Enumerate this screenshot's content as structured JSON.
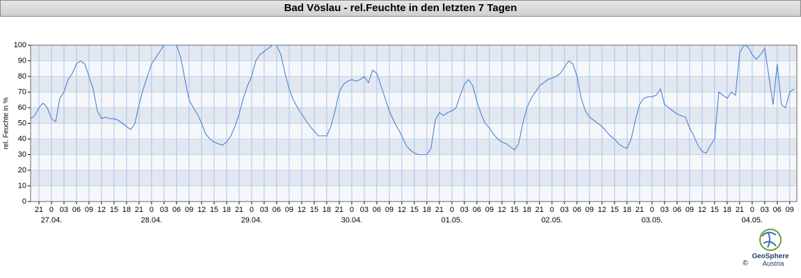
{
  "chart_data": {
    "type": "line",
    "title": "Bad Vöslau - rel.Feuchte in den letzten 7 Tagen",
    "y_label": "rel. Feuchte in %",
    "x": [
      -5,
      -4,
      -3,
      -2,
      -1,
      0,
      1,
      2,
      3,
      4,
      5,
      6,
      7,
      8,
      9,
      10,
      11,
      12,
      13,
      14,
      15,
      16,
      17,
      18,
      19,
      20,
      21,
      22,
      23,
      24,
      25,
      26,
      27,
      28,
      29,
      30,
      31,
      32,
      33,
      34,
      35,
      36,
      37,
      38,
      39,
      40,
      41,
      42,
      43,
      44,
      45,
      46,
      47,
      48,
      49,
      50,
      51,
      52,
      53,
      54,
      55,
      56,
      57,
      58,
      59,
      60,
      61,
      62,
      63,
      64,
      65,
      66,
      67,
      68,
      69,
      70,
      71,
      72,
      73,
      74,
      75,
      76,
      77,
      78,
      79,
      80,
      81,
      82,
      83,
      84,
      85,
      86,
      87,
      88,
      89,
      90,
      91,
      92,
      93,
      94,
      95,
      96,
      97,
      98,
      99,
      100,
      101,
      102,
      103,
      104,
      105,
      106,
      107,
      108,
      109,
      110,
      111,
      112,
      113,
      114,
      115,
      116,
      117,
      118,
      119,
      120,
      121,
      122,
      123,
      124,
      125,
      126,
      127,
      128,
      129,
      130,
      131,
      132,
      133,
      134,
      135,
      136,
      137,
      138,
      139,
      140,
      141,
      142,
      143,
      144,
      145,
      146,
      147,
      148,
      149,
      150,
      151,
      152,
      153,
      154,
      155,
      156,
      157,
      158,
      159,
      160,
      161,
      162,
      163,
      164,
      165,
      166,
      167,
      168,
      169,
      170,
      171,
      172,
      173,
      174,
      175,
      176,
      177,
      178
    ],
    "series": [
      {
        "name": "rel. Feuchte",
        "color": "#4a7fd4",
        "values": [
          53,
          55,
          60,
          63,
          60,
          53,
          51,
          66,
          70,
          78,
          82,
          88,
          90,
          88,
          80,
          72,
          58,
          53,
          54,
          53,
          53,
          52,
          50,
          48,
          46,
          50,
          62,
          72,
          80,
          88,
          92,
          96,
          100,
          100,
          100,
          100,
          92,
          78,
          65,
          60,
          56,
          50,
          43,
          40,
          38,
          37,
          36,
          38,
          42,
          48,
          56,
          66,
          74,
          80,
          90,
          94,
          96,
          98,
          100,
          100,
          94,
          82,
          72,
          65,
          60,
          56,
          52,
          48,
          45,
          42,
          42,
          42,
          48,
          58,
          70,
          75,
          77,
          78,
          77,
          78,
          80,
          76,
          84,
          82,
          74,
          66,
          58,
          52,
          47,
          42,
          36,
          33,
          31,
          30,
          30,
          30,
          34,
          52,
          57,
          55,
          57,
          58,
          60,
          68,
          75,
          78,
          74,
          64,
          56,
          50,
          47,
          43,
          40,
          38,
          37,
          35,
          33,
          37,
          50,
          60,
          66,
          70,
          74,
          76,
          78,
          79,
          80,
          82,
          86,
          90,
          88,
          80,
          66,
          58,
          54,
          52,
          50,
          48,
          45,
          42,
          40,
          37,
          35,
          34,
          40,
          52,
          62,
          66,
          67,
          67,
          68,
          72,
          62,
          60,
          58,
          56,
          55,
          54,
          47,
          42,
          36,
          32,
          31,
          36,
          40,
          70,
          68,
          66,
          70,
          68,
          95,
          100,
          99,
          94,
          91,
          94,
          98,
          80,
          62,
          88,
          62,
          60,
          70,
          72
        ]
      }
    ],
    "xlim": [
      -5,
      178.7
    ],
    "xticks": [
      {
        "value": -3,
        "label": "21"
      },
      0,
      {
        "value": 3,
        "label": "03"
      },
      {
        "value": 6,
        "label": "06"
      },
      {
        "value": 9,
        "label": "09"
      },
      12,
      15,
      18,
      21,
      {
        "value": 24,
        "label": "0"
      },
      {
        "value": 27,
        "label": "03"
      },
      {
        "value": 30,
        "label": "06"
      },
      {
        "value": 33,
        "label": "09"
      },
      {
        "value": 36,
        "label": "12"
      },
      {
        "value": 39,
        "label": "15"
      },
      {
        "value": 42,
        "label": "18"
      },
      {
        "value": 45,
        "label": "21"
      },
      {
        "value": 48,
        "label": "0"
      },
      {
        "value": 51,
        "label": "03"
      },
      {
        "value": 54,
        "label": "06"
      },
      {
        "value": 57,
        "label": "09"
      },
      {
        "value": 60,
        "label": "12"
      },
      {
        "value": 63,
        "label": "15"
      },
      {
        "value": 66,
        "label": "18"
      },
      {
        "value": 69,
        "label": "21"
      },
      {
        "value": 72,
        "label": "0"
      },
      {
        "value": 75,
        "label": "03"
      },
      {
        "value": 78,
        "label": "06"
      },
      {
        "value": 81,
        "label": "09"
      },
      {
        "value": 84,
        "label": "12"
      },
      {
        "value": 87,
        "label": "15"
      },
      {
        "value": 90,
        "label": "18"
      },
      {
        "value": 93,
        "label": "21"
      },
      {
        "value": 96,
        "label": "0"
      },
      {
        "value": 99,
        "label": "03"
      },
      {
        "value": 102,
        "label": "06"
      },
      {
        "value": 105,
        "label": "09"
      },
      {
        "value": 108,
        "label": "12"
      },
      {
        "value": 111,
        "label": "15"
      },
      {
        "value": 114,
        "label": "18"
      },
      {
        "value": 117,
        "label": "21"
      },
      {
        "value": 120,
        "label": "0"
      },
      {
        "value": 123,
        "label": "03"
      },
      {
        "value": 126,
        "label": "06"
      },
      {
        "value": 129,
        "label": "09"
      },
      {
        "value": 132,
        "label": "12"
      },
      {
        "value": 135,
        "label": "15"
      },
      {
        "value": 138,
        "label": "18"
      },
      {
        "value": 141,
        "label": "21"
      },
      {
        "value": 144,
        "label": "0"
      },
      {
        "value": 147,
        "label": "03"
      },
      {
        "value": 150,
        "label": "06"
      },
      {
        "value": 153,
        "label": "09"
      },
      {
        "value": 156,
        "label": "12"
      },
      {
        "value": 159,
        "label": "15"
      },
      {
        "value": 162,
        "label": "18"
      },
      {
        "value": 165,
        "label": "21"
      },
      {
        "value": 168,
        "label": "0"
      },
      {
        "value": 171,
        "label": "03"
      },
      {
        "value": 174,
        "label": "06"
      },
      {
        "value": 177,
        "label": "09"
      }
    ],
    "x_date_ticks": [
      {
        "value": 0,
        "label": "27.04."
      },
      {
        "value": 24,
        "label": "28.04."
      },
      {
        "value": 48,
        "label": "29.04."
      },
      {
        "value": 72,
        "label": "30.04."
      },
      {
        "value": 96,
        "label": "01.05."
      },
      {
        "value": 120,
        "label": "02.05."
      },
      {
        "value": 144,
        "label": "03.05."
      },
      {
        "value": 168,
        "label": "04.05."
      }
    ],
    "ylim": [
      0,
      100
    ],
    "yticks": [
      0,
      10,
      20,
      30,
      40,
      50,
      60,
      70,
      80,
      90,
      100
    ],
    "grid": true
  },
  "footer": {
    "brand": "GeoSphere",
    "brand_sub": "Austria",
    "copyright": "©"
  }
}
